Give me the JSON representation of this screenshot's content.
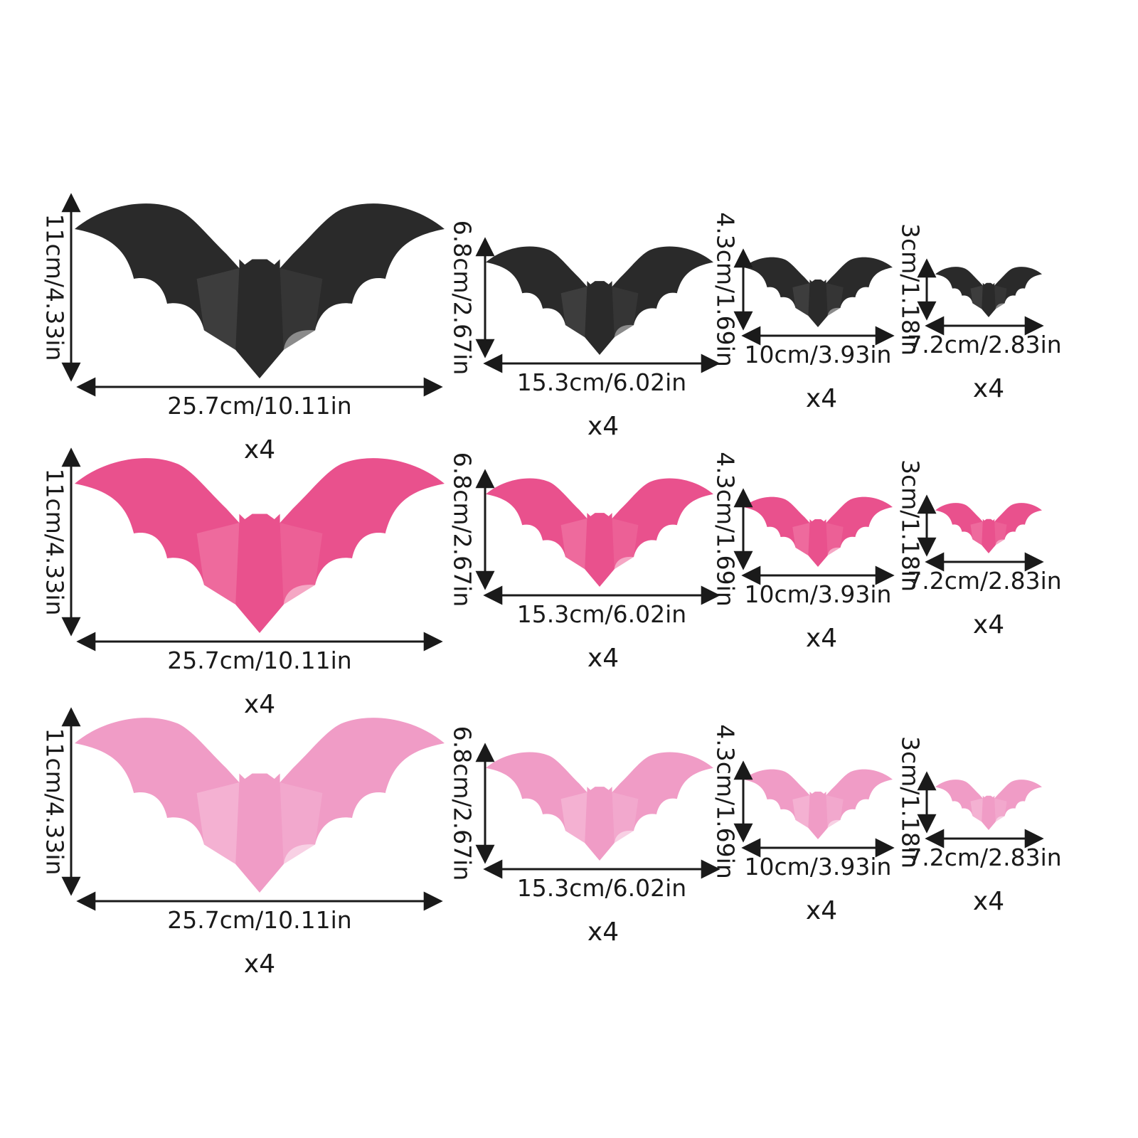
{
  "colors": {
    "background": "#ffffff",
    "line": "#1a1a1a",
    "text": "#1a1a1a"
  },
  "icons": {
    "bat": "bat-silhouette-icon",
    "arrow": "double-headed-arrow"
  },
  "rows": [
    {
      "color_name": "black",
      "fill": "#2a2a2a",
      "shade": "#3d3d3d",
      "sizes": [
        {
          "width_label": "25.7cm/10.11in",
          "height_label": "11cm/4.33in",
          "quantity": "x4",
          "width_cm": 25.7,
          "height_cm": 11
        },
        {
          "width_label": "15.3cm/6.02in",
          "height_label": "6.8cm/2.67in",
          "quantity": "x4",
          "width_cm": 15.3,
          "height_cm": 6.8
        },
        {
          "width_label": "10cm/3.93in",
          "height_label": "4.3cm/1.69in",
          "quantity": "x4",
          "width_cm": 10,
          "height_cm": 4.3
        },
        {
          "width_label": "7.2cm/2.83in",
          "height_label": "3cm/1.18in",
          "quantity": "x4",
          "width_cm": 7.2,
          "height_cm": 3
        }
      ]
    },
    {
      "color_name": "rose",
      "fill": "#e9518d",
      "shade": "#ee6a9d",
      "sizes": [
        {
          "width_label": "25.7cm/10.11in",
          "height_label": "11cm/4.33in",
          "quantity": "x4",
          "width_cm": 25.7,
          "height_cm": 11
        },
        {
          "width_label": "15.3cm/6.02in",
          "height_label": "6.8cm/2.67in",
          "quantity": "x4",
          "width_cm": 15.3,
          "height_cm": 6.8
        },
        {
          "width_label": "10cm/3.93in",
          "height_label": "4.3cm/1.69in",
          "quantity": "x4",
          "width_cm": 10,
          "height_cm": 4.3
        },
        {
          "width_label": "7.2cm/2.83in",
          "height_label": "3cm/1.18in",
          "quantity": "x4",
          "width_cm": 7.2,
          "height_cm": 3
        }
      ]
    },
    {
      "color_name": "light pink",
      "fill": "#f09cc6",
      "shade": "#f4b1d2",
      "sizes": [
        {
          "width_label": "25.7cm/10.11in",
          "height_label": "11cm/4.33in",
          "quantity": "x4",
          "width_cm": 25.7,
          "height_cm": 11
        },
        {
          "width_label": "15.3cm/6.02in",
          "height_label": "6.8cm/2.67in",
          "quantity": "x4",
          "width_cm": 15.3,
          "height_cm": 6.8
        },
        {
          "width_label": "10cm/3.93in",
          "height_label": "4.3cm/1.69in",
          "quantity": "x4",
          "width_cm": 10,
          "height_cm": 4.3
        },
        {
          "width_label": "7.2cm/2.83in",
          "height_label": "3cm/1.18in",
          "quantity": "x4",
          "width_cm": 7.2,
          "height_cm": 3
        }
      ]
    }
  ]
}
